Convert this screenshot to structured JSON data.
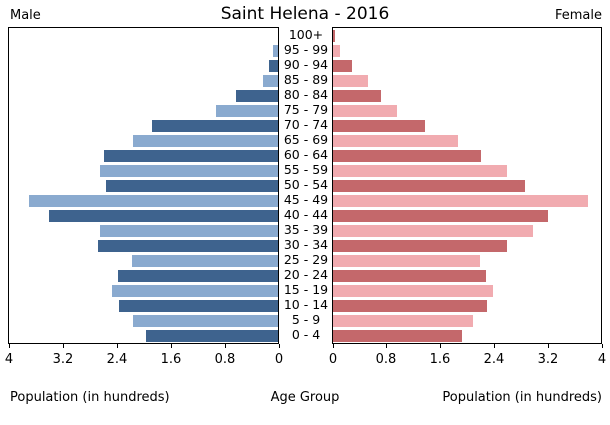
{
  "header": {
    "male": "Male",
    "title": "Saint Helena - 2016",
    "female": "Female"
  },
  "footer": {
    "left_caption": "Population (in hundreds)",
    "center_caption": "Age Group",
    "right_caption": "Population (in hundreds)"
  },
  "chart_data": {
    "type": "bar",
    "subtype": "population-pyramid",
    "title": "Saint Helena - 2016",
    "categories_top_to_bottom": [
      "100+",
      "95 - 99",
      "90 - 94",
      "85 - 89",
      "80 - 84",
      "75 - 79",
      "70 - 74",
      "65 - 69",
      "60 - 64",
      "55 - 59",
      "50 - 54",
      "45 - 49",
      "40 - 44",
      "35 - 39",
      "30 - 34",
      "25 - 29",
      "20 - 24",
      "15 - 19",
      "10 - 14",
      "5 - 9",
      "0 - 4"
    ],
    "series": [
      {
        "name": "Male",
        "values_top_to_bottom": [
          0.0,
          0.07,
          0.13,
          0.22,
          0.62,
          0.92,
          1.87,
          2.16,
          2.58,
          2.64,
          2.56,
          3.7,
          3.4,
          2.65,
          2.67,
          2.17,
          2.37,
          2.47,
          2.36,
          2.16,
          1.96
        ]
      },
      {
        "name": "Female",
        "values_top_to_bottom": [
          0.03,
          0.1,
          0.28,
          0.52,
          0.72,
          0.95,
          1.37,
          1.85,
          2.2,
          2.58,
          2.85,
          3.79,
          3.2,
          2.97,
          2.59,
          2.19,
          2.28,
          2.38,
          2.29,
          2.08,
          1.92
        ]
      }
    ],
    "x_axis": {
      "label": "Population (in hundreds)",
      "tick_values": [
        0,
        0.8,
        1.6,
        2.4,
        3.2,
        4
      ],
      "tick_labels_male": [
        "4",
        "3.2",
        "2.4",
        "1.6",
        "0.8",
        "0"
      ],
      "tick_labels_female": [
        "0",
        "0.8",
        "1.6",
        "2.4",
        "3.2",
        "4"
      ],
      "max": 4
    },
    "center_axis_label": "Age Group",
    "colors": {
      "male_dark": "#3e638e",
      "male_light": "#8aaacf",
      "female_dark": "#c4686b",
      "female_light": "#f1abb0"
    },
    "grid": false,
    "legend_position": "none"
  }
}
